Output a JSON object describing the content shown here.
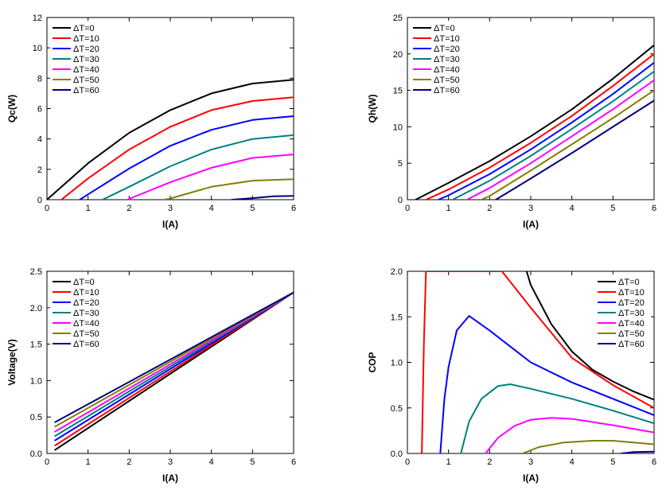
{
  "series_names": [
    "ΔT=0",
    "ΔT=10",
    "ΔT=20",
    "ΔT=30",
    "ΔT=40",
    "ΔT=50",
    "ΔT=60"
  ],
  "series_colors": [
    "#000000",
    "#ff0000",
    "#0000ff",
    "#008080",
    "#ff00ff",
    "#808000",
    "#000080"
  ],
  "chart_data": [
    {
      "type": "line",
      "xlabel": "I(A)",
      "ylabel": "Qc(W)",
      "xlim": [
        0,
        6
      ],
      "ylim": [
        0,
        12
      ],
      "xticks": [
        "0",
        "1",
        "2",
        "3",
        "4",
        "5",
        "6"
      ],
      "yticks": [
        "0",
        "2",
        "4",
        "6",
        "8",
        "10",
        "12"
      ],
      "legend": "top-left",
      "series": [
        {
          "name": "ΔT=0",
          "x": [
            0,
            1,
            2,
            3,
            4,
            5,
            6
          ],
          "y": [
            0,
            2.4,
            4.4,
            5.9,
            7.0,
            7.65,
            7.9
          ]
        },
        {
          "name": "ΔT=10",
          "x": [
            0.35,
            1,
            2,
            3,
            4,
            5,
            6
          ],
          "y": [
            0,
            1.4,
            3.3,
            4.8,
            5.9,
            6.5,
            6.75
          ]
        },
        {
          "name": "ΔT=20",
          "x": [
            0.8,
            1,
            2,
            3,
            4,
            5,
            6
          ],
          "y": [
            0,
            0.35,
            2.05,
            3.55,
            4.6,
            5.25,
            5.5
          ]
        },
        {
          "name": "ΔT=30",
          "x": [
            1.35,
            2,
            3,
            4,
            5,
            6
          ],
          "y": [
            0,
            0.85,
            2.2,
            3.3,
            4.0,
            4.25
          ]
        },
        {
          "name": "ΔT=40",
          "x": [
            1.95,
            2,
            3,
            4,
            5,
            6
          ],
          "y": [
            0,
            0.05,
            1.15,
            2.1,
            2.75,
            2.98
          ]
        },
        {
          "name": "ΔT=50",
          "x": [
            2.85,
            3,
            4,
            5,
            6
          ],
          "y": [
            0,
            0.08,
            0.85,
            1.25,
            1.35
          ]
        },
        {
          "name": "ΔT=60",
          "x": [
            4.5,
            5,
            5.5,
            6
          ],
          "y": [
            0,
            0.1,
            0.22,
            0.25
          ]
        }
      ]
    },
    {
      "type": "line",
      "xlabel": "I(A)",
      "ylabel": "Qh(W)",
      "xlim": [
        0,
        6
      ],
      "ylim": [
        0,
        25
      ],
      "xticks": [
        "0",
        "1",
        "2",
        "3",
        "4",
        "5",
        "6"
      ],
      "yticks": [
        "0",
        "5",
        "10",
        "15",
        "20",
        "25"
      ],
      "legend": "top-left",
      "series": [
        {
          "name": "ΔT=0",
          "x": [
            0.2,
            1,
            2,
            3,
            4,
            5,
            6
          ],
          "y": [
            0,
            2.3,
            5.3,
            8.7,
            12.4,
            16.6,
            21.2
          ]
        },
        {
          "name": "ΔT=10",
          "x": [
            0.45,
            1,
            2,
            3,
            4,
            5,
            6
          ],
          "y": [
            0,
            1.4,
            4.4,
            7.8,
            11.5,
            15.6,
            20.0
          ]
        },
        {
          "name": "ΔT=20",
          "x": [
            0.75,
            1,
            2,
            3,
            4,
            5,
            6
          ],
          "y": [
            0,
            0.6,
            3.5,
            6.9,
            10.6,
            14.5,
            18.8
          ]
        },
        {
          "name": "ΔT=30",
          "x": [
            1.1,
            2,
            3,
            4,
            5,
            6
          ],
          "y": [
            0,
            2.6,
            6.0,
            9.7,
            13.5,
            17.6
          ]
        },
        {
          "name": "ΔT=40",
          "x": [
            1.45,
            2,
            3,
            4,
            5,
            6
          ],
          "y": [
            0,
            1.6,
            5.0,
            8.7,
            12.4,
            16.4
          ]
        },
        {
          "name": "ΔT=50",
          "x": [
            1.8,
            2,
            3,
            4,
            5,
            6
          ],
          "y": [
            0,
            0.5,
            4.0,
            7.6,
            11.2,
            15.0
          ]
        },
        {
          "name": "ΔT=60",
          "x": [
            2.15,
            3,
            4,
            5,
            6
          ],
          "y": [
            0,
            2.9,
            6.4,
            10.0,
            13.6
          ]
        }
      ]
    },
    {
      "type": "line",
      "xlabel": "I(A)",
      "ylabel": "Voltage(V)",
      "xlim": [
        0,
        6
      ],
      "ylim": [
        0,
        2.5
      ],
      "xticks": [
        "0",
        "1",
        "2",
        "3",
        "4",
        "5",
        "6"
      ],
      "yticks": [
        "0.0",
        "0.5",
        "1.0",
        "1.5",
        "2.0",
        "2.5"
      ],
      "legend": "top-left",
      "series": [
        {
          "name": "ΔT=0",
          "x": [
            0.2,
            6
          ],
          "y": [
            0.05,
            2.21
          ]
        },
        {
          "name": "ΔT=10",
          "x": [
            0.2,
            6
          ],
          "y": [
            0.11,
            2.21
          ]
        },
        {
          "name": "ΔT=20",
          "x": [
            0.2,
            6
          ],
          "y": [
            0.18,
            2.21
          ]
        },
        {
          "name": "ΔT=30",
          "x": [
            0.2,
            6
          ],
          "y": [
            0.24,
            2.21
          ]
        },
        {
          "name": "ΔT=40",
          "x": [
            0.2,
            6
          ],
          "y": [
            0.3,
            2.21
          ]
        },
        {
          "name": "ΔT=50",
          "x": [
            0.2,
            6
          ],
          "y": [
            0.37,
            2.21
          ]
        },
        {
          "name": "ΔT=60",
          "x": [
            0.2,
            6
          ],
          "y": [
            0.43,
            2.21
          ]
        }
      ]
    },
    {
      "type": "line",
      "xlabel": "I(A)",
      "ylabel": "COP",
      "xlim": [
        0,
        6
      ],
      "ylim": [
        0,
        2.0
      ],
      "xticks": [
        "0",
        "1",
        "2",
        "3",
        "4",
        "5",
        "6"
      ],
      "yticks": [
        "0.0",
        "0.5",
        "1.0",
        "1.5",
        "2.0"
      ],
      "legend": "top-right",
      "series": [
        {
          "name": "ΔT=0",
          "x": [
            2.9,
            3,
            3.5,
            4,
            4.5,
            5,
            5.5,
            6
          ],
          "y": [
            2.0,
            1.85,
            1.42,
            1.12,
            0.92,
            0.79,
            0.68,
            0.59
          ]
        },
        {
          "name": "ΔT=10",
          "x": [
            0.35,
            0.4,
            0.45,
            2.3,
            3,
            4,
            5,
            6
          ],
          "y": [
            0,
            1.2,
            2.0,
            2.0,
            1.6,
            1.05,
            0.75,
            0.5
          ]
        },
        {
          "name": "ΔT=20",
          "x": [
            0.8,
            0.9,
            1.0,
            1.2,
            1.5,
            2,
            3,
            4,
            5,
            6
          ],
          "y": [
            0,
            0.6,
            0.95,
            1.35,
            1.51,
            1.35,
            1.0,
            0.78,
            0.6,
            0.42
          ]
        },
        {
          "name": "ΔT=30",
          "x": [
            1.3,
            1.5,
            1.8,
            2.2,
            2.5,
            3,
            4,
            5,
            6
          ],
          "y": [
            0,
            0.35,
            0.6,
            0.74,
            0.76,
            0.71,
            0.6,
            0.47,
            0.33
          ]
        },
        {
          "name": "ΔT=40",
          "x": [
            1.9,
            2.2,
            2.6,
            3,
            3.5,
            4,
            5,
            6
          ],
          "y": [
            0,
            0.17,
            0.3,
            0.37,
            0.39,
            0.38,
            0.31,
            0.23
          ]
        },
        {
          "name": "ΔT=50",
          "x": [
            2.8,
            3.2,
            3.8,
            4.5,
            5,
            6
          ],
          "y": [
            0,
            0.07,
            0.12,
            0.14,
            0.14,
            0.1
          ]
        },
        {
          "name": "ΔT=60",
          "x": [
            5.2,
            5.5,
            6
          ],
          "y": [
            0,
            0.015,
            0.02
          ]
        }
      ]
    }
  ]
}
